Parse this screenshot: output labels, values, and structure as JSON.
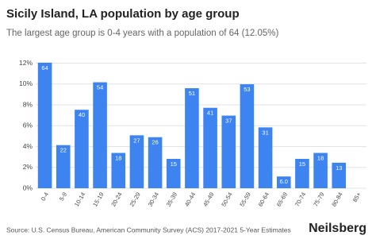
{
  "chart_data": {
    "type": "bar",
    "title": "Sicily Island, LA population by age group",
    "subtitle": "The largest age group is 0-4 years with a population of 64 (12.05%)",
    "categories": [
      "0-4",
      "5-9",
      "10-14",
      "15-19",
      "20-24",
      "25-29",
      "30-34",
      "35-39",
      "40-44",
      "45-49",
      "50-54",
      "55-59",
      "60-64",
      "65-69",
      "70-74",
      "75-79",
      "80-84",
      "85+"
    ],
    "values": [
      12.05,
      4.14,
      7.53,
      10.17,
      3.39,
      5.08,
      4.9,
      2.82,
      9.6,
      7.72,
      6.97,
      9.98,
      5.84,
      1.13,
      2.82,
      3.39,
      2.45,
      0
    ],
    "population_labels": [
      "64",
      "22",
      "40",
      "54",
      "18",
      "27",
      "26",
      "15",
      "51",
      "41",
      "37",
      "53",
      "31",
      "6.0",
      "15",
      "18",
      "13",
      null
    ],
    "color": "#3d84f0",
    "ylim": [
      0,
      12.5
    ],
    "yticks": [
      {
        "value": 0,
        "label": "0%"
      },
      {
        "value": 2,
        "label": "2%"
      },
      {
        "value": 4,
        "label": "4%"
      },
      {
        "value": 6,
        "label": "6%"
      },
      {
        "value": 8,
        "label": "8%"
      },
      {
        "value": 10,
        "label": "10%"
      },
      {
        "value": 12,
        "label": "12%"
      }
    ],
    "grid": true,
    "source": "Source: U.S. Census Bureau, American Community Survey (ACS) 2017-2021 5-Year Estimates",
    "brand": "Neilsberg"
  }
}
